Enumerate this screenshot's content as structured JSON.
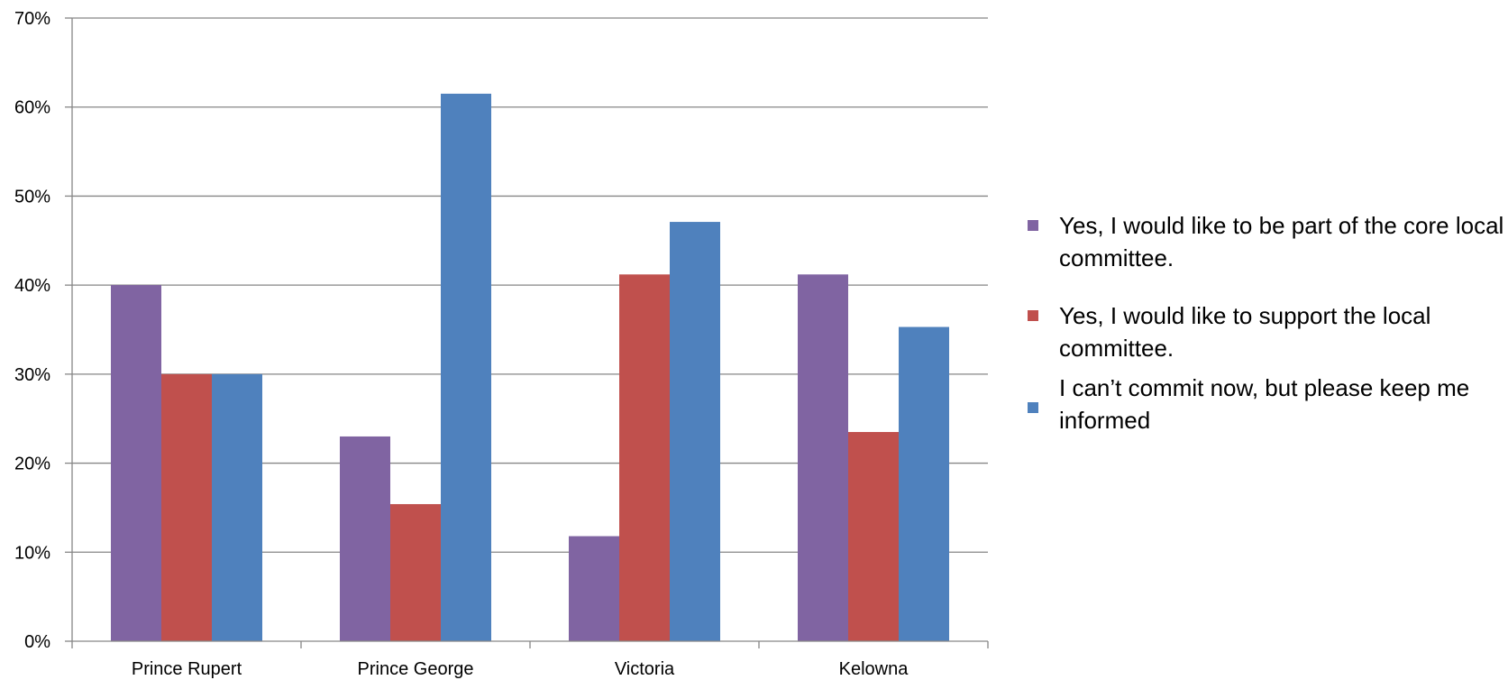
{
  "chart_data": {
    "type": "bar",
    "categories": [
      "Prince Rupert",
      "Prince George",
      "Victoria",
      "Kelowna"
    ],
    "series": [
      {
        "name": "Yes, I would like to be part of the core local committee.",
        "color": "#8064A2",
        "values": [
          40,
          23,
          11.8,
          41.2
        ]
      },
      {
        "name": "Yes, I would like to support the local committee.",
        "color": "#C0504D",
        "values": [
          30,
          15.4,
          41.2,
          23.5
        ]
      },
      {
        "name": "I can’t commit now, but please keep me informed",
        "color": "#4F81BD",
        "values": [
          30,
          61.5,
          47.1,
          35.3
        ]
      }
    ],
    "yticks": [
      "0%",
      "10%",
      "20%",
      "30%",
      "40%",
      "50%",
      "60%",
      "70%"
    ],
    "ylim": [
      0,
      70
    ],
    "grid": true,
    "legend_position": "right"
  }
}
